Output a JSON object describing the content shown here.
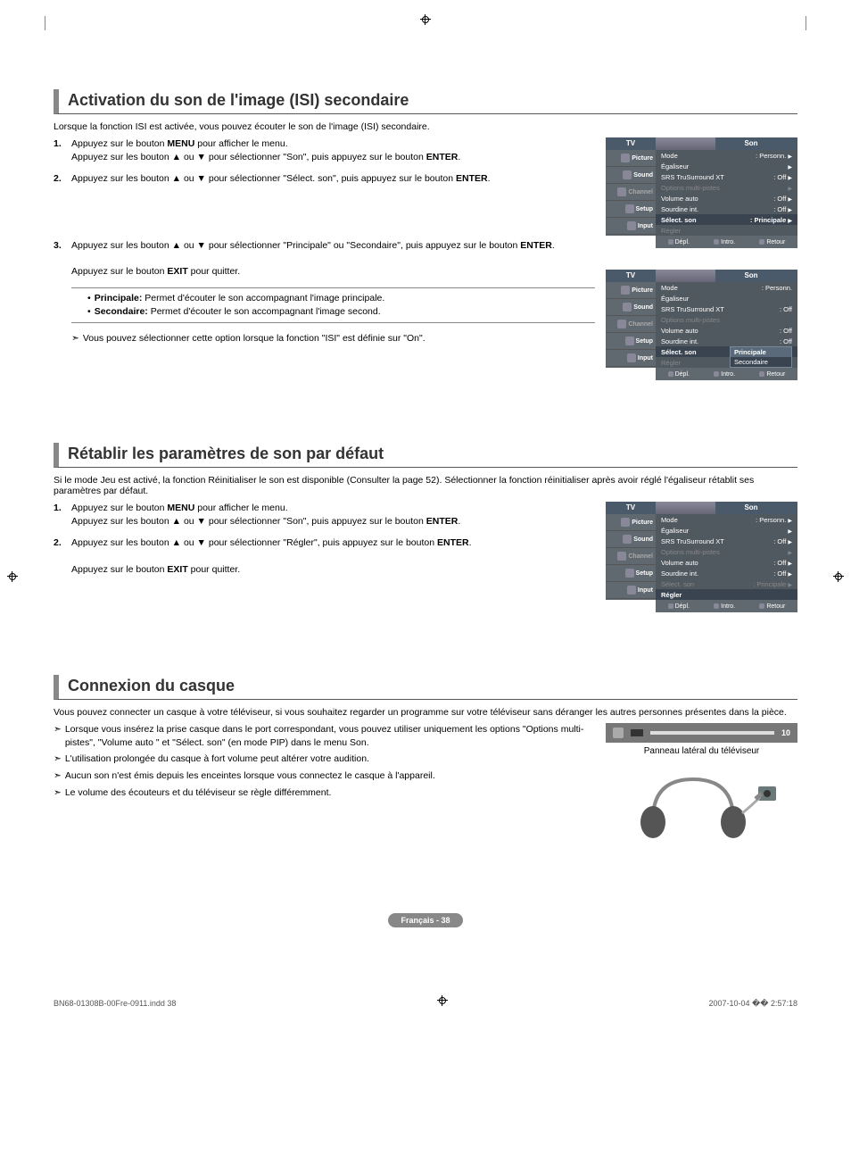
{
  "section1": {
    "title": "Activation du son de l'image (ISI) secondaire",
    "intro": "Lorsque la fonction ISI est activée, vous pouvez écouter le son de l'image (ISI) secondaire.",
    "steps": [
      {
        "num": "1.",
        "html": "Appuyez sur le bouton <b>MENU</b> pour afficher le menu.<br>Appuyez sur les bouton ▲ ou ▼ pour sélectionner \"Son\", puis appuyez sur le bouton <b>ENTER</b>."
      },
      {
        "num": "2.",
        "html": "Appuyez sur les bouton ▲ ou ▼ pour sélectionner \"Sélect. son\", puis appuyez sur le bouton <b>ENTER</b>."
      },
      {
        "num": "3.",
        "html": "Appuyez sur les bouton ▲ ou ▼ pour sélectionner \"Principale\" ou \"Secondaire\", puis appuyez sur le bouton <b>ENTER</b>.<br><br>Appuyez sur le bouton <b>EXIT</b> pour quitter."
      }
    ],
    "notes": [
      {
        "label": "Principale:",
        "text": "Permet d'écouter le son accompagnant l'image principale."
      },
      {
        "label": "Secondaire:",
        "text": "Permet d'écouter le son accompagnant l'image second."
      }
    ],
    "arrowNote": "Vous pouvez sélectionner cette option lorsque la fonction \"ISI\" est définie sur \"On\"."
  },
  "section2": {
    "title": "Rétablir les paramètres de son par défaut",
    "intro": "Si le mode Jeu est activé, la fonction Réinitialiser le son est disponible (Consulter la page 52). Sélectionner la fonction réinitialiser après avoir réglé l'égaliseur rétablit ses paramètres par défaut.",
    "steps": [
      {
        "num": "1.",
        "html": "Appuyez sur le bouton <b>MENU</b> pour afficher le menu.<br>Appuyez sur les bouton ▲ ou ▼ pour sélectionner \"Son\", puis appuyez sur le bouton <b>ENTER</b>."
      },
      {
        "num": "2.",
        "html": "Appuyez sur les bouton ▲ ou ▼ pour sélectionner \"Régler\", puis appuyez sur le bouton <b>ENTER</b>.<br><br>Appuyez sur le bouton <b>EXIT</b> pour quitter."
      }
    ]
  },
  "section3": {
    "title": "Connexion du casque",
    "intro": "Vous pouvez connecter un casque à votre téléviseur, si vous souhaitez regarder un programme sur votre téléviseur sans déranger les autres personnes présentes dans la pièce.",
    "notes": [
      "Lorsque vous insérez la prise casque dans le port correspondant, vous pouvez utiliser uniquement les options \"Options multi-pistes\", \"Volume auto \" et \"Sélect. son\" (en mode PIP) dans le menu Son.",
      "L'utilisation prolongée du casque à fort volume peut altérer votre audition.",
      "Aucun son n'est émis depuis les enceintes lorsque vous connectez le casque à l'appareil.",
      "Le volume des écouteurs et du téléviseur se règle différemment."
    ],
    "portLabel": "10",
    "caption": "Panneau latéral du téléviseur"
  },
  "osd": {
    "tv": "TV",
    "title": "Son",
    "side": [
      "Picture",
      "Sound",
      "Channel",
      "Setup",
      "Input"
    ],
    "rows1": [
      {
        "l": "Mode",
        "r": ": Personn.",
        "tri": true
      },
      {
        "l": "Égaliseur",
        "r": "",
        "tri": true
      },
      {
        "l": "SRS TruSurround XT",
        "r": ": Off",
        "tri": true
      },
      {
        "l": "Options multi-pistes",
        "r": "",
        "tri": true,
        "dim": true
      },
      {
        "l": "Volume auto",
        "r": ": Off",
        "tri": true
      },
      {
        "l": "Sourdine int.",
        "r": ": Off",
        "tri": true
      },
      {
        "l": "Sélect. son",
        "r": ": Principale",
        "tri": true,
        "sel": true
      },
      {
        "l": "Régler",
        "r": "",
        "dim": true
      }
    ],
    "rows2": [
      {
        "l": "Mode",
        "r": ": Personn."
      },
      {
        "l": "Égaliseur",
        "r": ""
      },
      {
        "l": "SRS TruSurround XT",
        "r": ": Off"
      },
      {
        "l": "Options multi-pistes",
        "r": "",
        "dim": true
      },
      {
        "l": "Volume auto",
        "r": ": Off"
      },
      {
        "l": "Sourdine int.",
        "r": ": Off"
      },
      {
        "l": "Sélect. son",
        "r": ":",
        "sel": true
      },
      {
        "l": "Régler",
        "r": "",
        "dim": true
      }
    ],
    "submenu": [
      "Principale",
      "Secondaire"
    ],
    "rows3": [
      {
        "l": "Mode",
        "r": ": Personn.",
        "tri": true
      },
      {
        "l": "Égaliseur",
        "r": "",
        "tri": true
      },
      {
        "l": "SRS TruSurround XT",
        "r": ": Off",
        "tri": true
      },
      {
        "l": "Options multi-pistes",
        "r": "",
        "tri": true,
        "dim": true
      },
      {
        "l": "Volume auto",
        "r": ": Off",
        "tri": true
      },
      {
        "l": "Sourdine int.",
        "r": ": Off",
        "tri": true
      },
      {
        "l": "Sélect. son",
        "r": ": Principale",
        "tri": true,
        "dim": true
      },
      {
        "l": "Régler",
        "r": "",
        "sel": true
      }
    ],
    "footer": [
      "Dépl.",
      "Intro.",
      "Retour"
    ]
  },
  "pageBadge": "Français - 38",
  "docFooter": {
    "left": "BN68-01308B-00Fre-0911.indd   38",
    "right": "2007-10-04   �� 2:57:18"
  }
}
